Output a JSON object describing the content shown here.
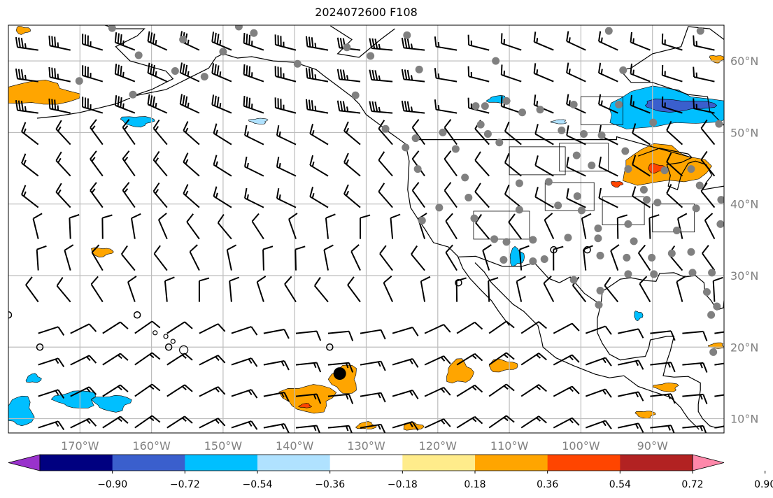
{
  "chart_data": {
    "type": "heatmap",
    "title": "2024072600 F108",
    "projection": "PlateCarree",
    "xlim": [
      -180,
      -80
    ],
    "ylim": [
      8,
      65
    ],
    "grid": true,
    "x_ticks": [
      -170,
      -160,
      -150,
      -140,
      -130,
      -120,
      -110,
      -100,
      -90
    ],
    "x_tick_labels": [
      "170°W",
      "160°W",
      "150°W",
      "140°W",
      "130°W",
      "120°W",
      "110°W",
      "100°W",
      "90°W"
    ],
    "y_ticks": [
      10,
      20,
      30,
      40,
      50,
      60
    ],
    "y_tick_labels": [
      "10°N",
      "20°N",
      "30°N",
      "40°N",
      "50°N",
      "60°N"
    ],
    "colorbar": {
      "orientation": "horizontal",
      "extend": "both",
      "boundaries": [
        -0.9,
        -0.72,
        -0.54,
        -0.36,
        -0.18,
        0.18,
        0.36,
        0.54,
        0.72,
        0.9
      ],
      "tick_labels": [
        "−0.90",
        "−0.72",
        "−0.54",
        "−0.36",
        "−0.18",
        "0.18",
        "0.36",
        "0.54",
        "0.72",
        "0.90"
      ],
      "colors": [
        "#9932cc",
        "#000080",
        "#3a5fcd",
        "#00bfff",
        "#b0e2ff",
        "#ffffff",
        "#ffec8b",
        "#ffa500",
        "#ff4500",
        "#b22222",
        "#ff88aa"
      ]
    },
    "shaded_regions": [
      {
        "value": 0.45,
        "lon": -176,
        "lat": 55.4,
        "dlon": 5.5,
        "dlat": 1.6
      },
      {
        "value": -0.45,
        "lon": -88,
        "lat": 53.3,
        "dlon": 9,
        "dlat": 2.6
      },
      {
        "value": -0.6,
        "lon": -86.5,
        "lat": 53.8,
        "dlon": 5,
        "dlat": 0.8
      },
      {
        "value": -0.45,
        "lon": -162,
        "lat": 51.6,
        "dlon": 2.2,
        "dlat": 0.7
      },
      {
        "value": -0.25,
        "lon": -145,
        "lat": 51.6,
        "dlon": 1.2,
        "dlat": 0.4
      },
      {
        "value": -0.25,
        "lon": -103,
        "lat": 51.5,
        "dlon": 1,
        "dlat": 0.3
      },
      {
        "value": -0.45,
        "lon": -111.5,
        "lat": 54.6,
        "dlon": 1.5,
        "dlat": 0.5
      },
      {
        "value": 0.45,
        "lon": -88.5,
        "lat": 45.3,
        "dlon": 6,
        "dlat": 2.6
      },
      {
        "value": 0.6,
        "lon": -89.5,
        "lat": 45,
        "dlon": 1.2,
        "dlat": 0.6
      },
      {
        "value": 0.6,
        "lon": -95,
        "lat": 42.8,
        "dlon": 0.8,
        "dlat": 0.4
      },
      {
        "value": 0.45,
        "lon": -138,
        "lat": 12.9,
        "dlon": 3.5,
        "dlat": 1.9
      },
      {
        "value": 0.45,
        "lon": -133,
        "lat": 15.5,
        "dlon": 1.8,
        "dlat": 2
      },
      {
        "value": 0.6,
        "lon": -138.5,
        "lat": 11.8,
        "dlon": 0.8,
        "dlat": 0.3
      },
      {
        "value": 0.45,
        "lon": -117,
        "lat": 16.5,
        "dlon": 1.8,
        "dlat": 1.6
      },
      {
        "value": 0.45,
        "lon": -111,
        "lat": 17.4,
        "dlon": 2,
        "dlat": 0.8
      },
      {
        "value": 0.45,
        "lon": -167,
        "lat": 33.3,
        "dlon": 1.5,
        "dlat": 0.6
      },
      {
        "value": -0.45,
        "lon": -165.5,
        "lat": 12.2,
        "dlon": 2.5,
        "dlat": 1.1
      },
      {
        "value": -0.45,
        "lon": -170.5,
        "lat": 12.7,
        "dlon": 2.8,
        "dlat": 1.2
      },
      {
        "value": -0.45,
        "lon": -178.5,
        "lat": 11,
        "dlon": 2,
        "dlat": 2
      },
      {
        "value": -0.45,
        "lon": -176.5,
        "lat": 15.6,
        "dlon": 1,
        "dlat": 0.6
      },
      {
        "value": -0.45,
        "lon": -109,
        "lat": 32.6,
        "dlon": 1,
        "dlat": 1.2
      },
      {
        "value": -0.45,
        "lon": -92,
        "lat": 24.4,
        "dlon": 0.6,
        "dlat": 0.6
      },
      {
        "value": 0.45,
        "lon": -91,
        "lat": 10.6,
        "dlon": 1.3,
        "dlat": 0.5
      },
      {
        "value": 0.45,
        "lon": -88,
        "lat": 14.4,
        "dlon": 1.6,
        "dlat": 0.6
      },
      {
        "value": 0.45,
        "lon": -81,
        "lat": 20.2,
        "dlon": 1,
        "dlat": 0.4
      },
      {
        "value": 0.45,
        "lon": -130,
        "lat": 9,
        "dlon": 1.3,
        "dlat": 0.5
      },
      {
        "value": 0.45,
        "lon": -123.5,
        "lat": 8.9,
        "dlon": 1.4,
        "dlat": 0.5
      },
      {
        "value": 0.45,
        "lon": -178,
        "lat": 64.3,
        "dlon": 1,
        "dlat": 0.5
      },
      {
        "value": 0.45,
        "lon": -81,
        "lat": 60.3,
        "dlon": 1,
        "dlat": 0.5
      }
    ],
    "stations": [
      [
        -165.5,
        64.6
      ],
      [
        -161.8,
        60.8
      ],
      [
        -155.6,
        63
      ],
      [
        -156.7,
        58.6
      ],
      [
        -162.6,
        55.3
      ],
      [
        -170.1,
        57.2
      ],
      [
        -152.6,
        57.8
      ],
      [
        -147.8,
        64.8
      ],
      [
        -145.7,
        63.9
      ],
      [
        -150,
        61.3
      ],
      [
        -139.6,
        59.6
      ],
      [
        -132.7,
        61.9
      ],
      [
        -131.5,
        55.2
      ],
      [
        -129.4,
        60.7
      ],
      [
        -122.6,
        58.8
      ],
      [
        -124.3,
        63.6
      ],
      [
        -127.3,
        50.5
      ],
      [
        -123.1,
        49.2
      ],
      [
        -124.5,
        47.9
      ],
      [
        -122.8,
        44.9
      ],
      [
        -119.8,
        39.5
      ],
      [
        -122.2,
        37.7
      ],
      [
        -119.3,
        50
      ],
      [
        -117.5,
        47.7
      ],
      [
        -116.2,
        43.7
      ],
      [
        -115.7,
        40.9
      ],
      [
        -113,
        49.8
      ],
      [
        -111.4,
        48.6
      ],
      [
        -114,
        51.1
      ],
      [
        -114.7,
        53.7
      ],
      [
        -113.4,
        53.7
      ],
      [
        -110.4,
        54.4
      ],
      [
        -111.9,
        60
      ],
      [
        -108.2,
        52.8
      ],
      [
        -105.7,
        53.2
      ],
      [
        -102.7,
        50.3
      ],
      [
        -101,
        53.9
      ],
      [
        -99.6,
        49.8
      ],
      [
        -97.1,
        49.6
      ],
      [
        -94.1,
        58.7
      ],
      [
        -96.1,
        64.2
      ],
      [
        -83.3,
        64.2
      ],
      [
        -89.9,
        51.4
      ],
      [
        -80.7,
        51.2
      ],
      [
        -94.7,
        53.9
      ],
      [
        -100.6,
        46.8
      ],
      [
        -98.5,
        45.4
      ],
      [
        -93.4,
        44.9
      ],
      [
        -93.8,
        47.4
      ],
      [
        -88.3,
        44.7
      ],
      [
        -84.6,
        44.9
      ],
      [
        -83.4,
        42.6
      ],
      [
        -91.2,
        42
      ],
      [
        -90.8,
        40.6
      ],
      [
        -89.3,
        40.2
      ],
      [
        -83.9,
        39.4
      ],
      [
        -80.4,
        40.6
      ],
      [
        -80.5,
        37.2
      ],
      [
        -86.6,
        36.3
      ],
      [
        -84.6,
        33.3
      ],
      [
        -87.3,
        33.1
      ],
      [
        -90.1,
        32.5
      ],
      [
        -93.6,
        32.5
      ],
      [
        -97.3,
        32.8
      ],
      [
        -97.6,
        35.2
      ],
      [
        -97.6,
        36.6
      ],
      [
        -93.4,
        37.2
      ],
      [
        -92.6,
        34.8
      ],
      [
        -93.4,
        30.2
      ],
      [
        -89.8,
        30.2
      ],
      [
        -84.4,
        30.4
      ],
      [
        -81.7,
        30.4
      ],
      [
        -82.4,
        27.7
      ],
      [
        -81,
        25.7
      ],
      [
        -81.8,
        24.5
      ],
      [
        -81.5,
        19.3
      ],
      [
        -97.3,
        27.9
      ],
      [
        -97.5,
        25.9
      ],
      [
        -101,
        29.4
      ],
      [
        -105.1,
        32.3
      ],
      [
        -106.7,
        32
      ],
      [
        -110.8,
        32.2
      ],
      [
        -106.7,
        35
      ],
      [
        -101.8,
        35.3
      ],
      [
        -103.2,
        39.8
      ],
      [
        -100.5,
        41.1
      ],
      [
        -104.5,
        43.1
      ],
      [
        -108.6,
        42.9
      ],
      [
        -108.6,
        39.2
      ],
      [
        -112.1,
        35.1
      ],
      [
        -114.9,
        38
      ],
      [
        -110.4,
        34.7
      ],
      [
        -99.9,
        39.1
      ]
    ],
    "open_circles": [
      [
        -162,
        24.5
      ],
      [
        -175.6,
        20
      ],
      [
        -157.6,
        20
      ],
      [
        -135.1,
        20
      ],
      [
        -117.1,
        29
      ],
      [
        -103.8,
        33.6
      ],
      [
        -99.1,
        33.6
      ],
      [
        -180,
        24.5
      ]
    ],
    "marked_point": [
      -133.7,
      16.3
    ]
  }
}
